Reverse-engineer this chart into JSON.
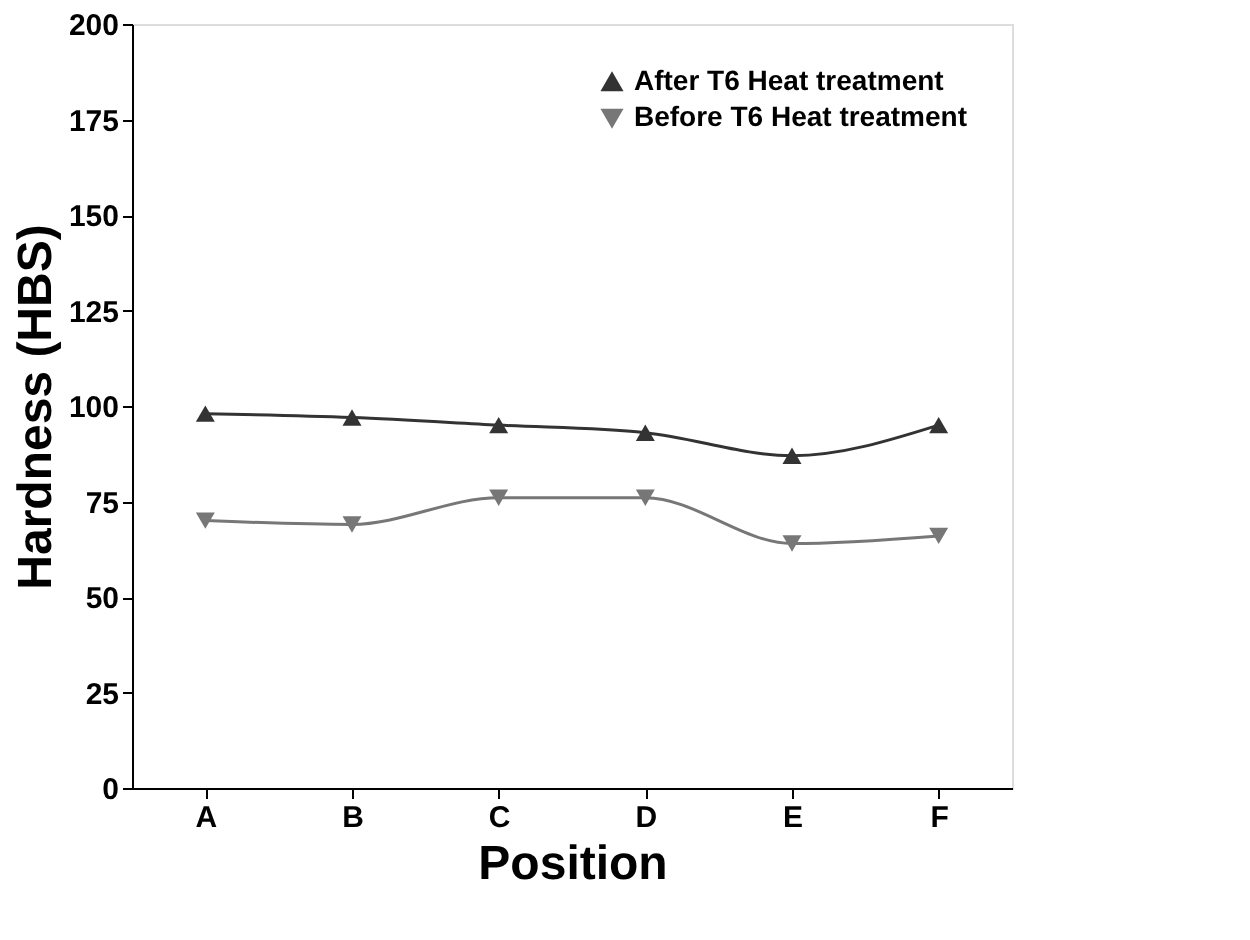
{
  "chart_data": {
    "type": "line",
    "xlabel": "Position",
    "ylabel": "Hardness (HBS)",
    "categories": [
      "A",
      "B",
      "C",
      "D",
      "E",
      "F"
    ],
    "series": [
      {
        "name": "After T6 Heat treatment",
        "color": "#333333",
        "marker": "triangle",
        "values": [
          98,
          97,
          95,
          93,
          87,
          95
        ]
      },
      {
        "name": "Before T6 Heat treatment",
        "color": "#777777",
        "marker": "triangle-down",
        "values": [
          70,
          69,
          76,
          76,
          64,
          66
        ]
      }
    ],
    "ylim": [
      0,
      200
    ],
    "yticks": [
      0,
      25,
      50,
      75,
      100,
      125,
      150,
      175,
      200
    ],
    "grid": false,
    "legend": "top right",
    "line_style": "solid"
  }
}
